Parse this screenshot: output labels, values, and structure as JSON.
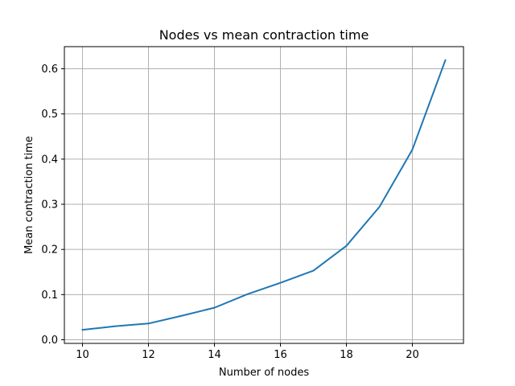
{
  "chart_data": {
    "type": "line",
    "title": "Nodes vs mean contraction time",
    "xlabel": "Number of nodes",
    "ylabel": "Mean contraction time",
    "x": [
      10,
      11,
      12,
      13,
      14,
      15,
      16,
      17,
      18,
      19,
      20,
      21
    ],
    "series": [
      {
        "values": [
          0.022,
          0.03,
          0.036,
          0.053,
          0.071,
          0.101,
          0.126,
          0.153,
          0.208,
          0.294,
          0.421,
          0.619
        ]
      }
    ],
    "xlim": [
      9.45,
      21.55
    ],
    "ylim": [
      -0.008,
      0.649
    ],
    "x_ticks": [
      10,
      12,
      14,
      16,
      18,
      20
    ],
    "x_tick_labels": [
      "10",
      "12",
      "14",
      "16",
      "18",
      "20"
    ],
    "y_ticks": [
      0.0,
      0.1,
      0.2,
      0.3,
      0.4,
      0.5,
      0.6
    ],
    "y_tick_labels": [
      "0.0",
      "0.1",
      "0.2",
      "0.3",
      "0.4",
      "0.5",
      "0.6"
    ],
    "grid": true,
    "colors": {
      "series": "#1f77b4",
      "grid": "#b0b0b0",
      "axes": "#000000"
    }
  }
}
